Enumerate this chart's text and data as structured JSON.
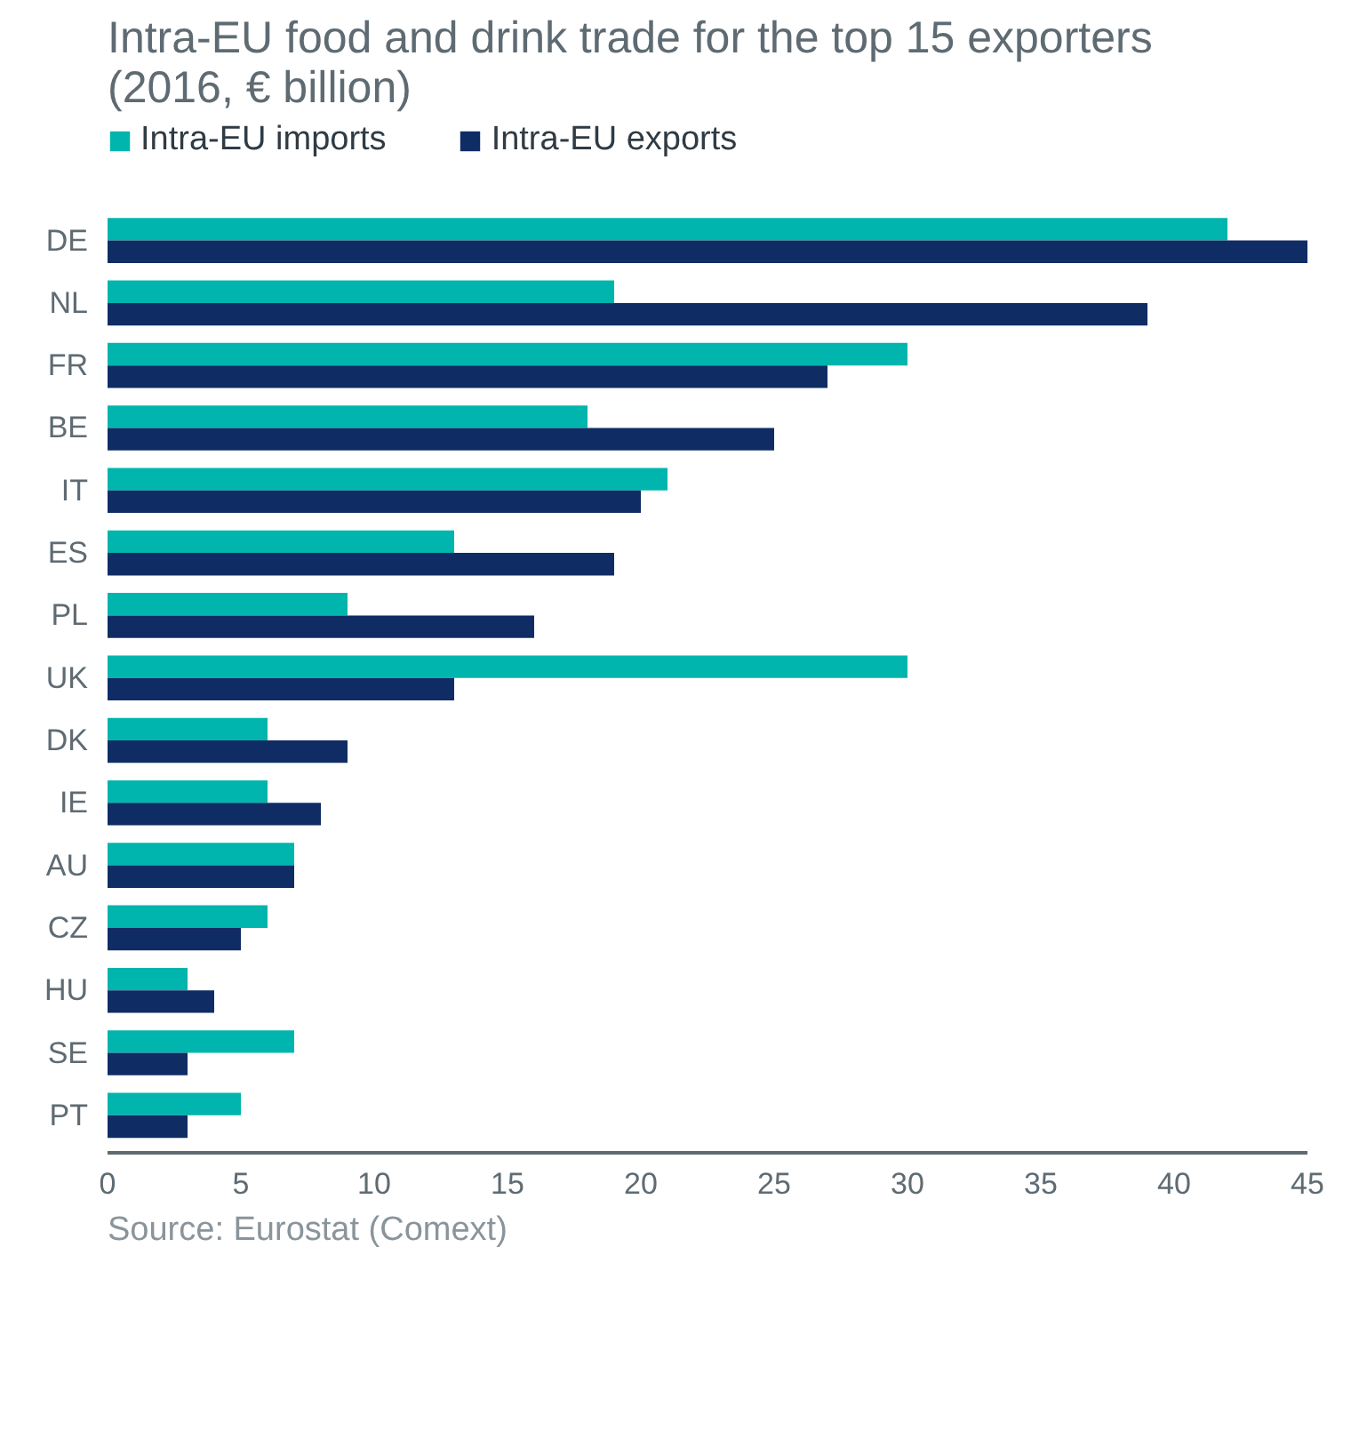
{
  "chart_data": {
    "type": "bar",
    "orientation": "horizontal",
    "title": "Intra-EU food and drink trade for the top 15 exporters (2016, € billion)",
    "categories": [
      "DE",
      "NL",
      "FR",
      "BE",
      "IT",
      "ES",
      "PL",
      "UK",
      "DK",
      "IE",
      "AU",
      "CZ",
      "HU",
      "SE",
      "PT"
    ],
    "series": [
      {
        "name": "Intra-EU imports",
        "color": "#00b5ad",
        "values": [
          42,
          19,
          30,
          18,
          21,
          13,
          9,
          30,
          6,
          6,
          7,
          6,
          3,
          7,
          5
        ]
      },
      {
        "name": "Intra-EU exports",
        "color": "#0f2d64",
        "values": [
          45,
          39,
          27,
          25,
          20,
          19,
          16,
          13,
          9,
          8,
          7,
          5,
          4,
          3,
          3
        ]
      }
    ],
    "xlim": [
      0,
      45
    ],
    "xticks": [
      0,
      5,
      10,
      15,
      20,
      25,
      30,
      35,
      40,
      45
    ],
    "grid": false,
    "legend": "top left",
    "annotations": [
      "Source: Eurostat (Comext)"
    ]
  }
}
